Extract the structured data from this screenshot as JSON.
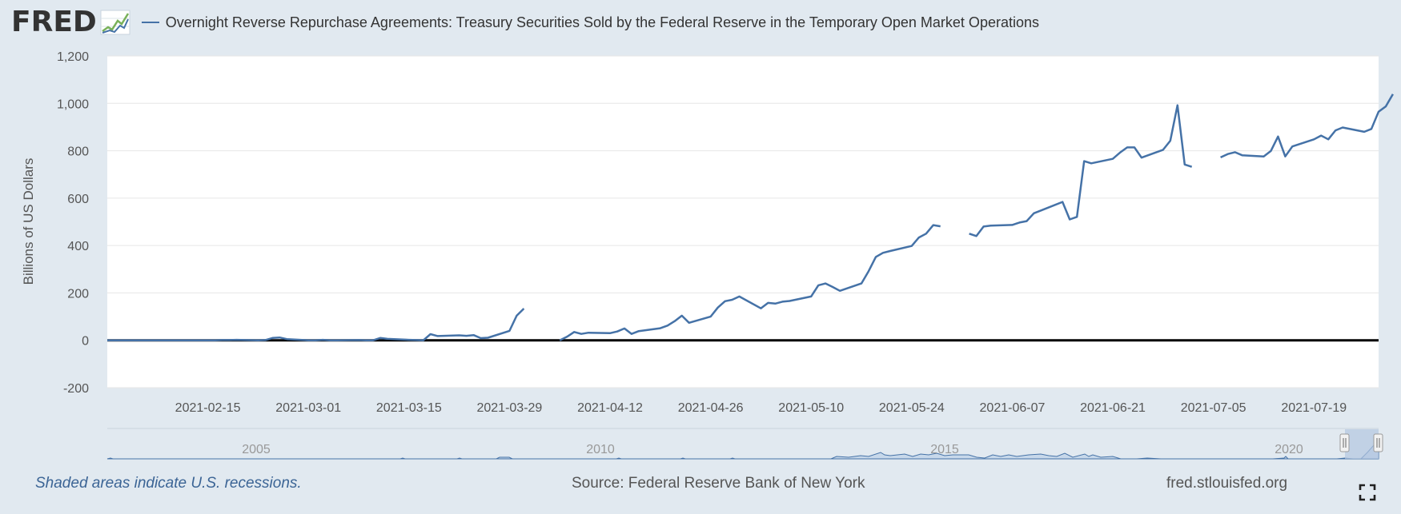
{
  "header": {
    "logo_text": "FRED",
    "legend_label": "Overnight Reverse Repurchase Agreements: Treasury Securities Sold by the Federal Reserve in the Temporary Open Market Operations"
  },
  "footer": {
    "note": "Shaded areas indicate U.S. recessions.",
    "source": "Source: Federal Reserve Bank of New York",
    "link": "fred.stlouisfed.org"
  },
  "colors": {
    "series": "#4572a7",
    "background": "#e1e9f0",
    "plot": "#ffffff"
  },
  "icons": {
    "logo_graph": "fred-graph-icon",
    "fullscreen": "fullscreen-icon"
  },
  "navigator": {
    "tick_labels": [
      "2005",
      "2010",
      "2015",
      "2020"
    ]
  },
  "chart_data": {
    "type": "line",
    "title": "",
    "xlabel": "",
    "ylabel": "Billions of US Dollars",
    "ylim": [
      -200,
      1200
    ],
    "yticks": [
      -200,
      0,
      200,
      400,
      600,
      800,
      1000,
      1200
    ],
    "ytick_labels": [
      "-200",
      "0",
      "200",
      "400",
      "600",
      "800",
      "1,000",
      "1,200"
    ],
    "xlim": [
      "2021-02-01",
      "2021-07-28"
    ],
    "xtick_labels": [
      "2021-02-15",
      "2021-03-01",
      "2021-03-15",
      "2021-03-29",
      "2021-04-12",
      "2021-04-26",
      "2021-05-10",
      "2021-05-24",
      "2021-06-07",
      "2021-06-21",
      "2021-07-05",
      "2021-07-19"
    ],
    "grid": true,
    "legend": "top",
    "series": [
      {
        "name": "Overnight Reverse Repurchase Agreements: Treasury Securities Sold by the Federal Reserve in the Temporary Open Market Operations",
        "segments": [
          [
            [
              "2021-02-01",
              0
            ],
            [
              "2021-02-02",
              0
            ],
            [
              "2021-02-03",
              0
            ],
            [
              "2021-02-04",
              0
            ],
            [
              "2021-02-05",
              0
            ],
            [
              "2021-02-08",
              0
            ],
            [
              "2021-02-09",
              0
            ],
            [
              "2021-02-10",
              0
            ],
            [
              "2021-02-11",
              0
            ],
            [
              "2021-02-12",
              0
            ],
            [
              "2021-02-16",
              0
            ],
            [
              "2021-02-17",
              1
            ],
            [
              "2021-02-18",
              1
            ],
            [
              "2021-02-19",
              2
            ],
            [
              "2021-02-22",
              0
            ],
            [
              "2021-02-23",
              1
            ],
            [
              "2021-02-24",
              10
            ],
            [
              "2021-02-25",
              12
            ],
            [
              "2021-02-26",
              5
            ],
            [
              "2021-03-01",
              0
            ],
            [
              "2021-03-02",
              0
            ],
            [
              "2021-03-03",
              2
            ],
            [
              "2021-03-04",
              0
            ],
            [
              "2021-03-05",
              0
            ],
            [
              "2021-03-08",
              1
            ],
            [
              "2021-03-09",
              0
            ],
            [
              "2021-03-10",
              0
            ],
            [
              "2021-03-11",
              10
            ],
            [
              "2021-03-12",
              6
            ],
            [
              "2021-03-15",
              2
            ],
            [
              "2021-03-16",
              1
            ],
            [
              "2021-03-17",
              0
            ],
            [
              "2021-03-18",
              26
            ],
            [
              "2021-03-19",
              18
            ],
            [
              "2021-03-22",
              21
            ],
            [
              "2021-03-23",
              19
            ],
            [
              "2021-03-24",
              22
            ],
            [
              "2021-03-25",
              9
            ],
            [
              "2021-03-26",
              11
            ],
            [
              "2021-03-29",
              40
            ],
            [
              "2021-03-30",
              104
            ],
            [
              "2021-03-31",
              134
            ]
          ],
          [
            [
              "2021-04-05",
              0
            ],
            [
              "2021-04-06",
              15
            ],
            [
              "2021-04-07",
              35
            ],
            [
              "2021-04-08",
              27
            ],
            [
              "2021-04-09",
              32
            ],
            [
              "2021-04-12",
              30
            ],
            [
              "2021-04-13",
              37
            ],
            [
              "2021-04-14",
              50
            ],
            [
              "2021-04-15",
              27
            ],
            [
              "2021-04-16",
              39
            ],
            [
              "2021-04-19",
              51
            ],
            [
              "2021-04-20",
              62
            ],
            [
              "2021-04-21",
              81
            ],
            [
              "2021-04-22",
              104
            ],
            [
              "2021-04-23",
              74
            ],
            [
              "2021-04-26",
              100
            ],
            [
              "2021-04-27",
              138
            ],
            [
              "2021-04-28",
              165
            ],
            [
              "2021-04-29",
              171
            ],
            [
              "2021-04-30",
              185
            ],
            [
              "2021-05-03",
              135
            ],
            [
              "2021-05-04",
              158
            ],
            [
              "2021-05-05",
              155
            ],
            [
              "2021-05-06",
              163
            ],
            [
              "2021-05-07",
              166
            ],
            [
              "2021-05-10",
              185
            ],
            [
              "2021-05-11",
              232
            ],
            [
              "2021-05-12",
              240
            ],
            [
              "2021-05-13",
              225
            ],
            [
              "2021-05-14",
              209
            ],
            [
              "2021-05-17",
              240
            ],
            [
              "2021-05-18",
              292
            ],
            [
              "2021-05-19",
              352
            ],
            [
              "2021-05-20",
              369
            ],
            [
              "2021-05-21",
              377
            ],
            [
              "2021-05-24",
              398
            ],
            [
              "2021-05-25",
              434
            ],
            [
              "2021-05-26",
              450
            ],
            [
              "2021-05-27",
              486
            ],
            [
              "2021-05-28",
              481
            ]
          ],
          [
            [
              "2021-06-01",
              450
            ],
            [
              "2021-06-02",
              440
            ],
            [
              "2021-06-03",
              480
            ],
            [
              "2021-06-04",
              484
            ],
            [
              "2021-06-07",
              487
            ],
            [
              "2021-06-08",
              497
            ],
            [
              "2021-06-09",
              503
            ],
            [
              "2021-06-10",
              536
            ],
            [
              "2021-06-11",
              548
            ],
            [
              "2021-06-14",
              584
            ],
            [
              "2021-06-15",
              510
            ],
            [
              "2021-06-16",
              521
            ],
            [
              "2021-06-17",
              756
            ],
            [
              "2021-06-18",
              747
            ],
            [
              "2021-06-21",
              766
            ],
            [
              "2021-06-22",
              792
            ],
            [
              "2021-06-23",
              814
            ],
            [
              "2021-06-24",
              814
            ],
            [
              "2021-06-25",
              771
            ],
            [
              "2021-06-28",
              804
            ],
            [
              "2021-06-29",
              842
            ],
            [
              "2021-06-30",
              992
            ],
            [
              "2021-07-01",
              742
            ],
            [
              "2021-07-02",
              732
            ]
          ],
          [
            [
              "2021-07-06",
              772
            ],
            [
              "2021-07-07",
              786
            ],
            [
              "2021-07-08",
              794
            ],
            [
              "2021-07-09",
              781
            ],
            [
              "2021-07-12",
              776
            ],
            [
              "2021-07-13",
              799
            ],
            [
              "2021-07-14",
              860
            ],
            [
              "2021-07-15",
              776
            ],
            [
              "2021-07-16",
              818
            ],
            [
              "2021-07-19",
              848
            ],
            [
              "2021-07-20",
              864
            ],
            [
              "2021-07-21",
              848
            ],
            [
              "2021-07-22",
              886
            ],
            [
              "2021-07-23",
              898
            ],
            [
              "2021-07-26",
              880
            ],
            [
              "2021-07-27",
              892
            ],
            [
              "2021-07-28",
              965
            ],
            [
              "2021-07-29",
              987
            ],
            [
              "2021-07-30",
              1039
            ]
          ]
        ]
      }
    ]
  }
}
